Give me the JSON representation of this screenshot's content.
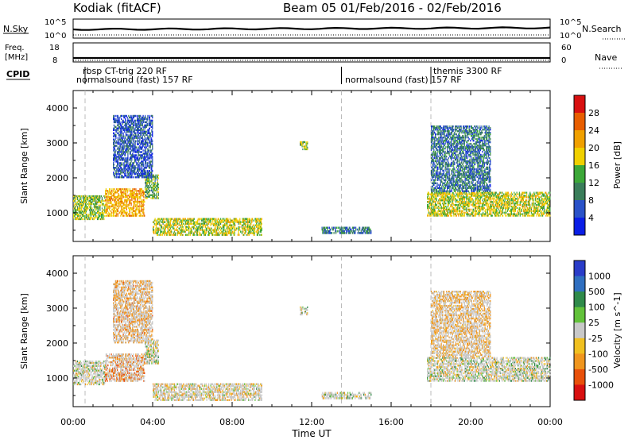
{
  "header": {
    "station": "Kodiak (fitACF)",
    "beam_range": "Beam 05   01/Feb/2016 - 02/Feb/2016"
  },
  "noise_strip": {
    "left_label": "N.Sky",
    "right_label": "N.Search",
    "left_ticks": [
      "10^5",
      "10^0"
    ],
    "right_ticks": [
      "10^5",
      "10^0"
    ]
  },
  "freq_strip": {
    "left_label_1": "Freq.",
    "left_label_2": "[MHz]",
    "right_label": "Nave",
    "left_ticks": [
      "18",
      "8"
    ],
    "right_ticks": [
      "60",
      "0"
    ]
  },
  "cpid": {
    "label": "CPID",
    "modes": [
      {
        "text": "rbsp CT-trig 220 RF",
        "start_hour": 0.6
      },
      {
        "text": "normalsound (fast) 157 RF",
        "start_hour": 0.6
      },
      {
        "text": "normalsound (fast) 157 RF",
        "start_hour": 13.5
      },
      {
        "text": "themis 3300 RF",
        "start_hour": 18.0
      }
    ]
  },
  "colors": {
    "power_scale": [
      "#0a1ee6",
      "#2a52c8",
      "#3a7d5a",
      "#3ca838",
      "#f0d000",
      "#f0a000",
      "#e85e00",
      "#d81010"
    ],
    "velocity_scale": [
      "#2a3cc8",
      "#2f6fc0",
      "#2f8a4a",
      "#62c23a",
      "#c8c8c8",
      "#f0c020",
      "#f0961e",
      "#e8500a",
      "#d81010"
    ]
  },
  "chart_data": [
    {
      "type": "heatmap",
      "panel": "power",
      "x_ticks": [
        "00:00",
        "04:00",
        "08:00",
        "12:00",
        "16:00",
        "20:00",
        "00:00"
      ],
      "xlim_hours": [
        0,
        24
      ],
      "ylabel": "Slant Range [km]",
      "y_ticks": [
        1000,
        2000,
        3000,
        4000
      ],
      "ylim": [
        180,
        4500
      ],
      "colorbar_label": "Power [dB]",
      "colorbar_ticks": [
        "4",
        "8",
        "12",
        "16",
        "20",
        "24",
        "28"
      ],
      "colorbar_range": [
        0,
        30
      ],
      "reference_lines_hours": [
        0.6,
        13.5,
        18.0
      ],
      "regions": [
        {
          "t0": 0.0,
          "t1": 1.6,
          "r0": 800,
          "r1": 1500,
          "value": 14
        },
        {
          "t0": 1.6,
          "t1": 3.6,
          "r0": 900,
          "r1": 1700,
          "value": 20
        },
        {
          "t0": 3.6,
          "t1": 4.3,
          "r0": 1400,
          "r1": 2100,
          "value": 12
        },
        {
          "t0": 2.0,
          "t1": 4.0,
          "r0": 2000,
          "r1": 3800,
          "value": 6
        },
        {
          "t0": 4.0,
          "t1": 9.5,
          "r0": 350,
          "r1": 850,
          "value": 16
        },
        {
          "t0": 11.4,
          "t1": 11.8,
          "r0": 2800,
          "r1": 3050,
          "value": 14
        },
        {
          "t0": 12.5,
          "t1": 15.0,
          "r0": 400,
          "r1": 600,
          "value": 8
        },
        {
          "t0": 17.8,
          "t1": 24.0,
          "r0": 900,
          "r1": 1600,
          "value": 16
        },
        {
          "t0": 18.0,
          "t1": 21.0,
          "r0": 1600,
          "r1": 3500,
          "value": 8
        }
      ]
    },
    {
      "type": "heatmap",
      "panel": "velocity",
      "x_ticks": [
        "00:00",
        "04:00",
        "08:00",
        "12:00",
        "16:00",
        "20:00",
        "00:00"
      ],
      "xlim_hours": [
        0,
        24
      ],
      "xlabel": "Time UT",
      "ylabel": "Slant Range [km]",
      "y_ticks": [
        1000,
        2000,
        3000,
        4000
      ],
      "ylim": [
        180,
        4500
      ],
      "colorbar_label": "Velocity [m s^-1]",
      "colorbar_ticks": [
        "1000",
        "500",
        "100",
        "25",
        "-25",
        "-100",
        "-500",
        "-1000"
      ],
      "reference_lines_hours": [
        0.6,
        13.5,
        18.0
      ],
      "regions": [
        {
          "t0": 0.0,
          "t1": 1.6,
          "r0": 800,
          "r1": 1500,
          "value": 0
        },
        {
          "t0": 1.6,
          "t1": 3.6,
          "r0": 900,
          "r1": 1700,
          "value": -300
        },
        {
          "t0": 3.6,
          "t1": 4.3,
          "r0": 1400,
          "r1": 2100,
          "value": 0
        },
        {
          "t0": 2.0,
          "t1": 4.0,
          "r0": 2000,
          "r1": 3800,
          "value": -200
        },
        {
          "t0": 4.0,
          "t1": 9.5,
          "r0": 350,
          "r1": 850,
          "value": -60
        },
        {
          "t0": 11.4,
          "t1": 11.8,
          "r0": 2800,
          "r1": 3050,
          "value": 0
        },
        {
          "t0": 12.5,
          "t1": 15.0,
          "r0": 400,
          "r1": 600,
          "value": 0
        },
        {
          "t0": 17.8,
          "t1": 24.0,
          "r0": 900,
          "r1": 1600,
          "value": 0
        },
        {
          "t0": 18.0,
          "t1": 21.0,
          "r0": 1600,
          "r1": 3500,
          "value": -150
        }
      ]
    }
  ]
}
